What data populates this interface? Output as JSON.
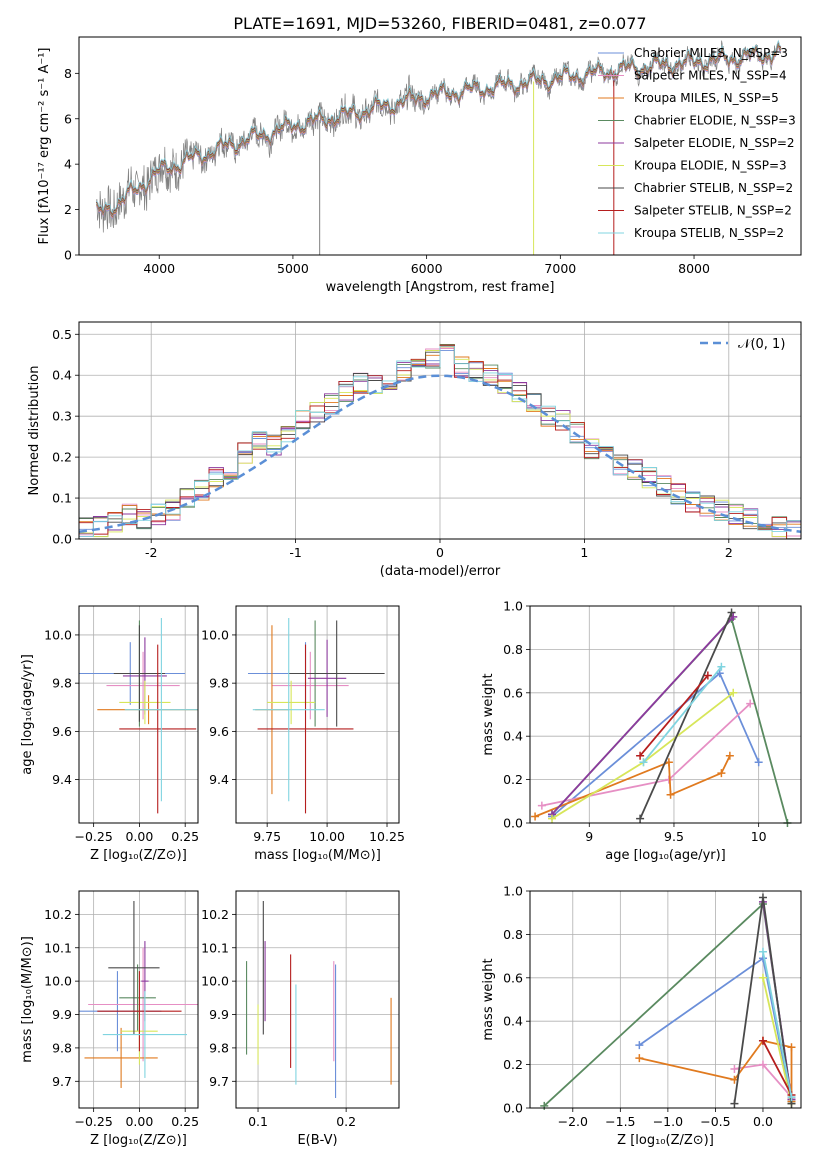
{
  "figure": {
    "title": "PLATE=1691, MJD=53260, FIBERID=0481, z=0.077"
  },
  "chart_data": [
    {
      "id": "spectrum",
      "type": "line",
      "xlabel": "wavelength [Angstrom, rest frame]",
      "ylabel": "Flux [fλ10⁻¹⁷ erg cm⁻² s⁻¹ A⁻¹]",
      "xlim": [
        3400,
        8800
      ],
      "ylim": [
        0,
        9.6
      ],
      "xticks": [
        4000,
        5000,
        6000,
        7000,
        8000
      ],
      "yticks": [
        0,
        2,
        4,
        6,
        8
      ],
      "grid": false,
      "legend_position": "top-right",
      "data_color": "#808080",
      "continuum": {
        "x": [
          3530,
          3700,
          4000,
          4500,
          5000,
          5500,
          6000,
          6500,
          7000,
          7500,
          8000,
          8500,
          8650
        ],
        "y": [
          1.8,
          2.3,
          3.7,
          4.8,
          5.7,
          6.3,
          7.0,
          7.4,
          7.8,
          8.2,
          8.5,
          8.8,
          8.9
        ]
      },
      "series": [
        {
          "name": "Chabrier MILES, N_SSP=3",
          "color": "#6b8fd9"
        },
        {
          "name": "Salpeter MILES, N_SSP=4",
          "color": "#e68fc4"
        },
        {
          "name": "Kroupa MILES, N_SSP=5",
          "color": "#e07a1f"
        },
        {
          "name": "Chabrier ELODIE, N_SSP=3",
          "color": "#5a8a60"
        },
        {
          "name": "Salpeter ELODIE, N_SSP=2",
          "color": "#8c3a9e"
        },
        {
          "name": "Kroupa ELODIE, N_SSP=3",
          "color": "#d7e65a"
        },
        {
          "name": "Chabrier STELIB, N_SSP=2",
          "color": "#4a4a4a"
        },
        {
          "name": "Salpeter STELIB, N_SSP=2",
          "color": "#b51e1e"
        },
        {
          "name": "Kroupa STELIB, N_SSP=2",
          "color": "#80d4e0"
        }
      ]
    },
    {
      "id": "residuals",
      "type": "histogram",
      "xlabel": "(data-model)/error",
      "ylabel": "Normed distribution",
      "xlim": [
        -2.5,
        2.5
      ],
      "ylim": [
        0,
        0.53
      ],
      "xticks": [
        -2,
        -1,
        0,
        1,
        2
      ],
      "yticks": [
        0.0,
        0.1,
        0.2,
        0.3,
        0.4,
        0.5
      ],
      "grid": true,
      "legend": "𝒩(0, 1)",
      "legend_position": "top-right",
      "reference_curve": {
        "name": "𝒩(0, 1)",
        "color": "#5b8fd6",
        "style": "dashed"
      },
      "bin_width": 0.1,
      "envelope": {
        "x": [
          -2.5,
          -2.4,
          -2.3,
          -2.2,
          -2.1,
          -2.0,
          -1.9,
          -1.8,
          -1.7,
          -1.6,
          -1.5,
          -1.4,
          -1.3,
          -1.2,
          -1.1,
          -1.0,
          -0.9,
          -0.8,
          -0.7,
          -0.6,
          -0.5,
          -0.4,
          -0.3,
          -0.2,
          -0.1,
          0.0,
          0.1,
          0.2,
          0.3,
          0.4,
          0.5,
          0.6,
          0.7,
          0.8,
          0.9,
          1.0,
          1.1,
          1.2,
          1.3,
          1.4,
          1.5,
          1.6,
          1.7,
          1.8,
          1.9,
          2.0,
          2.1,
          2.2,
          2.3,
          2.4
        ],
        "y": [
          0.03,
          0.03,
          0.04,
          0.06,
          0.05,
          0.06,
          0.07,
          0.1,
          0.12,
          0.15,
          0.17,
          0.21,
          0.24,
          0.23,
          0.25,
          0.29,
          0.31,
          0.33,
          0.36,
          0.38,
          0.38,
          0.39,
          0.41,
          0.43,
          0.44,
          0.45,
          0.42,
          0.41,
          0.4,
          0.38,
          0.36,
          0.33,
          0.3,
          0.29,
          0.26,
          0.22,
          0.21,
          0.18,
          0.17,
          0.15,
          0.13,
          0.11,
          0.09,
          0.08,
          0.07,
          0.06,
          0.05,
          0.04,
          0.03,
          0.02
        ]
      }
    },
    {
      "id": "age-vs-Z",
      "type": "errorbar",
      "xlabel": "Z [log₁₀(Z/Z⊙)]",
      "ylabel": "age  [log₁₀(age/yr)]",
      "xlim": [
        -0.33,
        0.32
      ],
      "ylim": [
        9.22,
        10.12
      ],
      "xticks": [
        -0.25,
        0.0,
        0.25
      ],
      "xticklabels": [
        "−0.25",
        "0.00",
        "0.25"
      ],
      "yticks": [
        9.4,
        9.6,
        9.8,
        10.0
      ],
      "grid": true,
      "points": [
        {
          "x": -0.05,
          "xerr": 0.3,
          "y": 9.84,
          "yerr": 0.13,
          "color": "#6b8fd9"
        },
        {
          "x": 0.02,
          "xerr": 0.2,
          "y": 9.79,
          "yerr": 0.14,
          "color": "#e68fc4"
        },
        {
          "x": 0.05,
          "xerr": 0.28,
          "y": 9.69,
          "yerr": 0.06,
          "color": "#e07a1f"
        },
        {
          "x": 0.0,
          "xerr": 0.1,
          "y": 9.84,
          "yerr": 0.22,
          "color": "#5a8a60"
        },
        {
          "x": 0.03,
          "xerr": 0.12,
          "y": 9.83,
          "yerr": 0.16,
          "color": "#8c3a9e"
        },
        {
          "x": 0.03,
          "xerr": 0.14,
          "y": 9.72,
          "yerr": 0.09,
          "color": "#d7e65a"
        },
        {
          "x": 0.0,
          "xerr": 0.14,
          "y": 9.84,
          "yerr": 0.2,
          "color": "#4a4a4a"
        },
        {
          "x": 0.1,
          "xerr": 0.21,
          "y": 9.61,
          "yerr": 0.35,
          "color": "#b51e1e"
        },
        {
          "x": 0.12,
          "xerr": 0.2,
          "y": 9.69,
          "yerr": 0.38,
          "color": "#80d4e0"
        }
      ]
    },
    {
      "id": "age-vs-mass",
      "type": "errorbar",
      "xlabel": "mass [log₁₀(M/M⊙)]",
      "ylabel": "",
      "xlim": [
        9.62,
        10.3
      ],
      "ylim": [
        9.22,
        10.12
      ],
      "xticks": [
        9.75,
        10.0,
        10.25
      ],
      "xticklabels": [
        "9.75",
        "10.00",
        "10.25"
      ],
      "yticks": [
        9.4,
        9.6,
        9.8,
        10.0
      ],
      "grid": true,
      "points": [
        {
          "x": 9.91,
          "xerr": 0.24,
          "y": 9.84,
          "yerr": 0.13,
          "color": "#6b8fd9"
        },
        {
          "x": 9.93,
          "xerr": 0.16,
          "y": 9.79,
          "yerr": 0.14,
          "color": "#e68fc4"
        },
        {
          "x": 9.77,
          "xerr": 0.07,
          "y": 9.69,
          "yerr": 0.35,
          "color": "#e07a1f"
        },
        {
          "x": 9.95,
          "xerr": 0.1,
          "y": 9.84,
          "yerr": 0.22,
          "color": "#5a8a60"
        },
        {
          "x": 10.0,
          "xerr": 0.08,
          "y": 9.82,
          "yerr": 0.16,
          "color": "#8c3a9e"
        },
        {
          "x": 9.85,
          "xerr": 0.1,
          "y": 9.72,
          "yerr": 0.09,
          "color": "#d7e65a"
        },
        {
          "x": 10.04,
          "xerr": 0.2,
          "y": 9.84,
          "yerr": 0.22,
          "color": "#4a4a4a"
        },
        {
          "x": 9.91,
          "xerr": 0.2,
          "y": 9.61,
          "yerr": 0.35,
          "color": "#b51e1e"
        },
        {
          "x": 9.84,
          "xerr": 0.15,
          "y": 9.69,
          "yerr": 0.38,
          "color": "#80d4e0"
        }
      ]
    },
    {
      "id": "weight-vs-age",
      "type": "line",
      "xlabel": "age  [log₁₀(age/yr)]",
      "ylabel": "mass weight",
      "xlim": [
        8.65,
        10.25
      ],
      "ylim": [
        0.0,
        1.0
      ],
      "xticks": [
        9.0,
        9.5,
        10.0
      ],
      "yticks": [
        0.0,
        0.2,
        0.4,
        0.6,
        0.8,
        1.0
      ],
      "grid": true,
      "series": [
        {
          "color": "#6b8fd9",
          "x": [
            8.78,
            9.77,
            10.0
          ],
          "y": [
            0.03,
            0.69,
            0.28
          ]
        },
        {
          "color": "#e68fc4",
          "x": [
            8.72,
            9.47,
            9.95
          ],
          "y": [
            0.08,
            0.2,
            0.55
          ]
        },
        {
          "color": "#e07a1f",
          "x": [
            8.68,
            9.47,
            9.48,
            9.78,
            9.83
          ],
          "y": [
            0.03,
            0.28,
            0.13,
            0.23,
            0.31
          ]
        },
        {
          "color": "#5a8a60",
          "x": [
            8.78,
            9.84,
            10.17
          ],
          "y": [
            0.04,
            0.94,
            0.0
          ]
        },
        {
          "color": "#8c3a9e",
          "x": [
            8.78,
            9.85
          ],
          "y": [
            0.04,
            0.95
          ]
        },
        {
          "color": "#d7e65a",
          "x": [
            8.78,
            9.32,
            9.85
          ],
          "y": [
            0.02,
            0.28,
            0.6
          ]
        },
        {
          "color": "#4a4a4a",
          "x": [
            9.3,
            9.84
          ],
          "y": [
            0.02,
            0.97
          ]
        },
        {
          "color": "#b51e1e",
          "x": [
            9.3,
            9.7
          ],
          "y": [
            0.31,
            0.68
          ]
        },
        {
          "color": "#80d4e0",
          "x": [
            9.32,
            9.78
          ],
          "y": [
            0.28,
            0.72
          ]
        }
      ]
    },
    {
      "id": "mass-vs-Z",
      "type": "errorbar",
      "xlabel": "Z [log₁₀(Z/Z⊙)]",
      "ylabel": "mass [log₁₀(M/M⊙)]",
      "xlim": [
        -0.33,
        0.32
      ],
      "ylim": [
        9.62,
        10.27
      ],
      "xticks": [
        -0.25,
        0.0,
        0.25
      ],
      "xticklabels": [
        "−0.25",
        "0.00",
        "0.25"
      ],
      "yticks": [
        9.7,
        9.8,
        9.9,
        10.0,
        10.1,
        10.2
      ],
      "grid": true,
      "points": [
        {
          "x": -0.12,
          "xerr": 0.24,
          "y": 9.91,
          "yerr": 0.12,
          "color": "#6b8fd9"
        },
        {
          "x": 0.02,
          "xerr": 0.3,
          "y": 9.93,
          "yerr": 0.17,
          "color": "#e68fc4"
        },
        {
          "x": -0.1,
          "xerr": 0.2,
          "y": 9.77,
          "yerr": 0.09,
          "color": "#e07a1f"
        },
        {
          "x": -0.01,
          "xerr": 0.1,
          "y": 9.95,
          "yerr": 0.1,
          "color": "#5a8a60"
        },
        {
          "x": 0.03,
          "xerr": 0.02,
          "y": 10.0,
          "yerr": 0.12,
          "color": "#8c3a9e"
        },
        {
          "x": 0.0,
          "xerr": 0.1,
          "y": 9.85,
          "yerr": 0.1,
          "color": "#d7e65a"
        },
        {
          "x": -0.03,
          "xerr": 0.14,
          "y": 10.04,
          "yerr": 0.2,
          "color": "#4a4a4a"
        },
        {
          "x": 0.0,
          "xerr": 0.23,
          "y": 9.91,
          "yerr": 0.12,
          "color": "#b51e1e"
        },
        {
          "x": 0.03,
          "xerr": 0.23,
          "y": 9.84,
          "yerr": 0.13,
          "color": "#80d4e0"
        }
      ]
    },
    {
      "id": "mass-vs-EBV",
      "type": "errorbar",
      "xlabel": "E(B-V)",
      "ylabel": "",
      "xlim": [
        0.075,
        0.26
      ],
      "ylim": [
        9.62,
        10.27
      ],
      "xticks": [
        0.1,
        0.2
      ],
      "xticklabels": [
        "0.1",
        "0.2"
      ],
      "yticks": [
        9.7,
        9.8,
        9.9,
        10.0,
        10.1,
        10.2
      ],
      "grid": true,
      "points": [
        {
          "x": 0.188,
          "y": 9.85,
          "yerr": 0.2,
          "color": "#6b8fd9"
        },
        {
          "x": 0.186,
          "y": 9.91,
          "yerr": 0.15,
          "color": "#e68fc4"
        },
        {
          "x": 0.251,
          "y": 9.82,
          "yerr": 0.13,
          "color": "#e07a1f"
        },
        {
          "x": 0.087,
          "y": 9.92,
          "yerr": 0.14,
          "color": "#5a8a60"
        },
        {
          "x": 0.108,
          "y": 10.0,
          "yerr": 0.12,
          "color": "#8c3a9e"
        },
        {
          "x": 0.1,
          "y": 9.84,
          "yerr": 0.09,
          "color": "#d7e65a"
        },
        {
          "x": 0.106,
          "y": 10.04,
          "yerr": 0.2,
          "color": "#4a4a4a"
        },
        {
          "x": 0.137,
          "y": 9.91,
          "yerr": 0.17,
          "color": "#b51e1e"
        },
        {
          "x": 0.143,
          "y": 9.84,
          "yerr": 0.15,
          "color": "#80d4e0"
        }
      ]
    },
    {
      "id": "weight-vs-Z",
      "type": "line",
      "xlabel": "Z [log₁₀(Z/Z⊙)]",
      "ylabel": "mass weight",
      "xlim": [
        -2.45,
        0.4
      ],
      "ylim": [
        0.0,
        1.0
      ],
      "xticks": [
        -2.0,
        -1.5,
        -1.0,
        -0.5,
        0.0
      ],
      "xticklabels": [
        "−2.0",
        "−1.5",
        "−1.0",
        "−0.5",
        "0.0"
      ],
      "yticks": [
        0.0,
        0.2,
        0.4,
        0.6,
        0.8,
        1.0
      ],
      "grid": true,
      "series": [
        {
          "color": "#6b8fd9",
          "x": [
            -1.3,
            0.0,
            0.3
          ],
          "y": [
            0.29,
            0.69,
            0.03
          ]
        },
        {
          "color": "#e68fc4",
          "x": [
            -0.3,
            0.0,
            0.3
          ],
          "y": [
            0.18,
            0.2,
            0.05
          ]
        },
        {
          "color": "#e07a1f",
          "x": [
            -1.3,
            -0.3,
            0.0,
            0.3,
            0.3
          ],
          "y": [
            0.23,
            0.13,
            0.31,
            0.28,
            0.03
          ]
        },
        {
          "color": "#5a8a60",
          "x": [
            -2.3,
            0.0,
            0.3
          ],
          "y": [
            0.01,
            0.94,
            0.04
          ]
        },
        {
          "color": "#8c3a9e",
          "x": [
            0.0,
            0.3
          ],
          "y": [
            0.95,
            0.04
          ]
        },
        {
          "color": "#d7e65a",
          "x": [
            0.0,
            0.3
          ],
          "y": [
            0.6,
            0.02
          ]
        },
        {
          "color": "#4a4a4a",
          "x": [
            -0.3,
            0.0,
            0.3
          ],
          "y": [
            0.02,
            0.97,
            0.02
          ]
        },
        {
          "color": "#b51e1e",
          "x": [
            0.0,
            0.3
          ],
          "y": [
            0.31,
            0.06
          ]
        },
        {
          "color": "#80d4e0",
          "x": [
            0.0,
            0.3
          ],
          "y": [
            0.72,
            0.05
          ]
        }
      ]
    }
  ]
}
